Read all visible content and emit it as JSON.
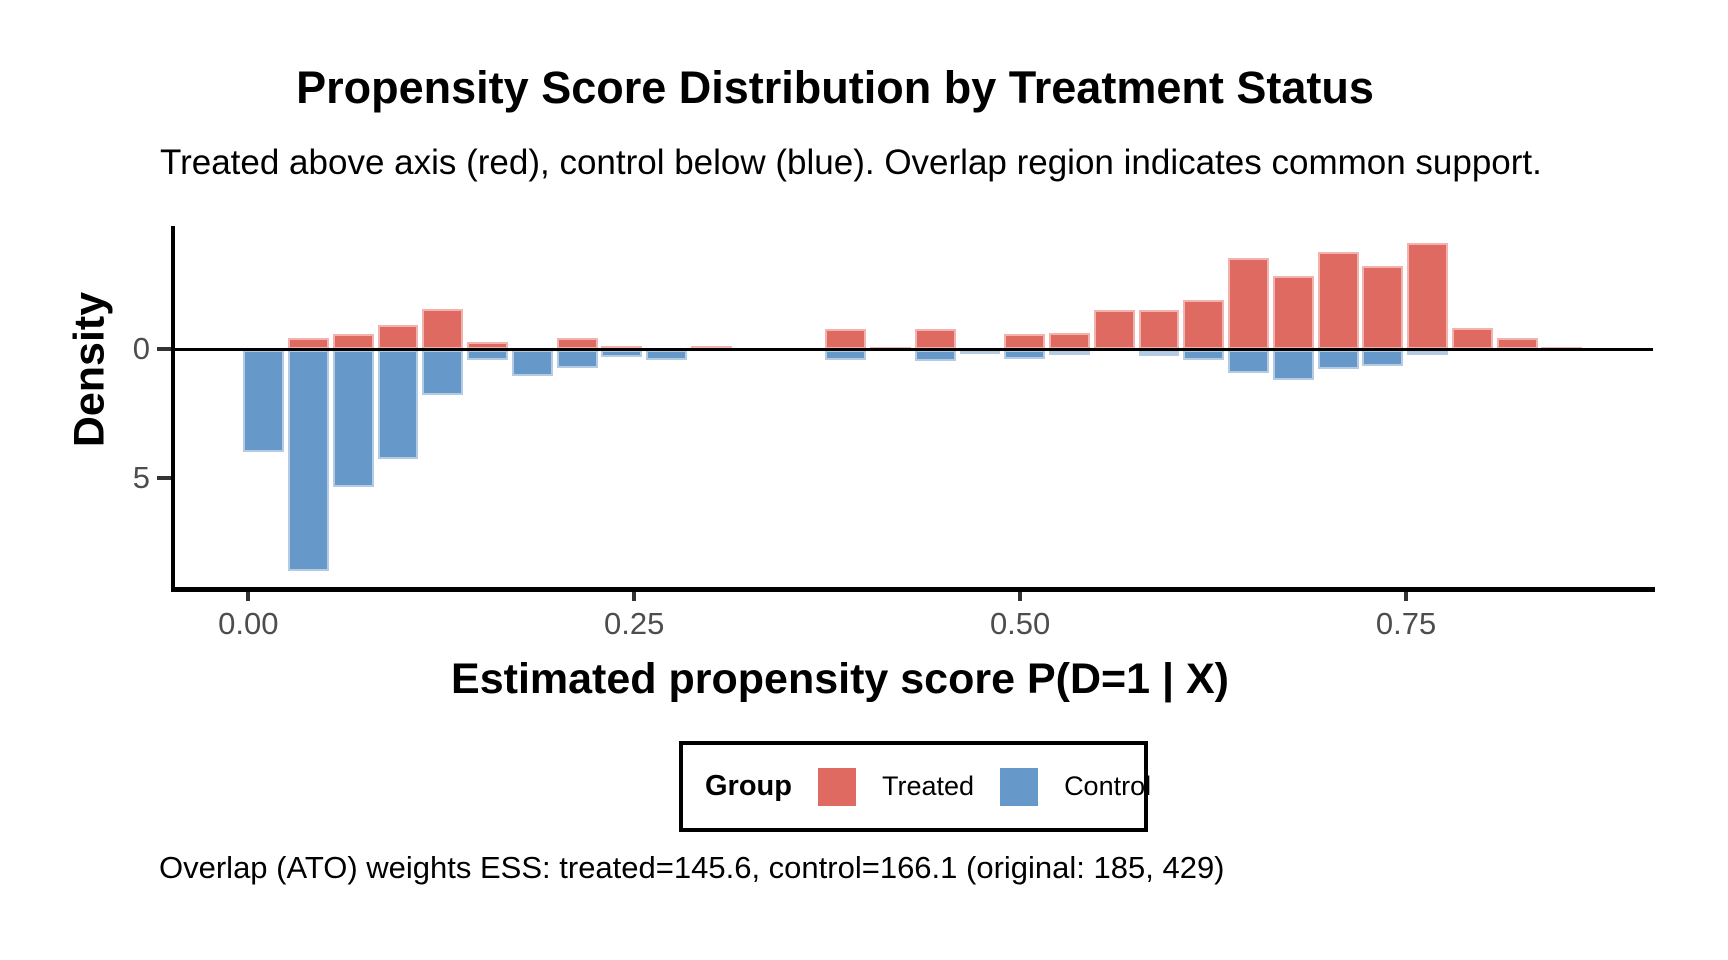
{
  "chart_data": {
    "type": "bar",
    "variant": "mirror-histogram",
    "title": "Propensity Score Distribution by Treatment Status",
    "subtitle": "Treated above axis (red), control below (blue). Overlap region indicates common support.",
    "caption": "Overlap (ATO) weights ESS: treated=145.6, control=166.1 (original: 185, 429)",
    "xlabel": "Estimated propensity score P(D=1 | X)",
    "ylabel": "Density",
    "xlim": [
      -0.0475,
      0.91
    ],
    "ylim": [
      -9.25,
      4.78
    ],
    "grid": false,
    "bin_width": 0.0291,
    "x_ticks": [
      {
        "value": 0.0,
        "label": "0.00"
      },
      {
        "value": 0.25,
        "label": "0.25"
      },
      {
        "value": 0.5,
        "label": "0.50"
      },
      {
        "value": 0.75,
        "label": "0.75"
      }
    ],
    "y_ticks": [
      {
        "value": 0,
        "label": "0"
      },
      {
        "value": -5,
        "label": "5"
      }
    ],
    "series_note": "treated density plotted above axis, control density plotted below axis",
    "bins": [
      {
        "x": 0.01,
        "treated": 0.0,
        "control": 3.95
      },
      {
        "x": 0.039,
        "treated": 0.45,
        "control": 8.55
      },
      {
        "x": 0.068,
        "treated": 0.6,
        "control": 5.3
      },
      {
        "x": 0.097,
        "treated": 0.95,
        "control": 4.2
      },
      {
        "x": 0.126,
        "treated": 1.55,
        "control": 1.75
      },
      {
        "x": 0.155,
        "treated": 0.27,
        "control": 0.36
      },
      {
        "x": 0.184,
        "treated": 0.0,
        "control": 1.0
      },
      {
        "x": 0.213,
        "treated": 0.45,
        "control": 0.67
      },
      {
        "x": 0.242,
        "treated": 0.13,
        "control": 0.27
      },
      {
        "x": 0.271,
        "treated": 0.05,
        "control": 0.39
      },
      {
        "x": 0.3,
        "treated": 0.13,
        "control": 0.0
      },
      {
        "x": 0.329,
        "treated": 0.0,
        "control": 0.0
      },
      {
        "x": 0.358,
        "treated": 0.0,
        "control": 0.0
      },
      {
        "x": 0.387,
        "treated": 0.78,
        "control": 0.37
      },
      {
        "x": 0.416,
        "treated": 0.1,
        "control": 0.0
      },
      {
        "x": 0.445,
        "treated": 0.79,
        "control": 0.42
      },
      {
        "x": 0.474,
        "treated": 0.0,
        "control": 0.15
      },
      {
        "x": 0.503,
        "treated": 0.61,
        "control": 0.33
      },
      {
        "x": 0.532,
        "treated": 0.65,
        "control": 0.18
      },
      {
        "x": 0.561,
        "treated": 1.54,
        "control": 0.0
      },
      {
        "x": 0.59,
        "treated": 1.54,
        "control": 0.22
      },
      {
        "x": 0.619,
        "treated": 1.93,
        "control": 0.36
      },
      {
        "x": 0.648,
        "treated": 3.55,
        "control": 0.87
      },
      {
        "x": 0.677,
        "treated": 2.83,
        "control": 1.16
      },
      {
        "x": 0.706,
        "treated": 3.78,
        "control": 0.71
      },
      {
        "x": 0.735,
        "treated": 3.22,
        "control": 0.62
      },
      {
        "x": 0.764,
        "treated": 4.12,
        "control": 0.2
      },
      {
        "x": 0.793,
        "treated": 0.83,
        "control": 0.0
      },
      {
        "x": 0.822,
        "treated": 0.44,
        "control": 0.0
      },
      {
        "x": 0.851,
        "treated": 0.1,
        "control": 0.0
      }
    ]
  },
  "legend": {
    "title": "Group",
    "items": [
      {
        "label": "Treated",
        "color": "#DE6A62",
        "stroke": "#F2B3AE"
      },
      {
        "label": "Control",
        "color": "#6699CA",
        "stroke": "#B3CCE4"
      }
    ]
  },
  "colors": {
    "treated": "#DE6A62",
    "treated_stroke": "#F2B3AE",
    "control": "#6699CA",
    "control_stroke": "#B3CCE4",
    "axis_line": "#000000",
    "tick_text": "#4d4d4d"
  }
}
